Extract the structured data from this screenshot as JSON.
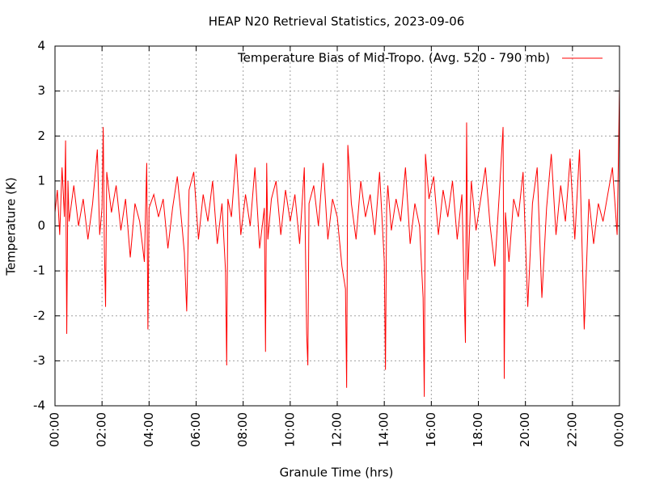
{
  "chart_data": {
    "type": "line",
    "title": "HEAP N20 Retrieval Statistics, 2023-09-06",
    "x_label": "Granule Time (hrs)",
    "y_label": "Temperature (K)",
    "grid": true,
    "legend": "top-right",
    "xlim": [
      0,
      24
    ],
    "ylim": [
      -4,
      4
    ],
    "yticks": [
      -4,
      -3,
      -2,
      -1,
      0,
      1,
      2,
      3,
      4
    ],
    "xticks": [
      {
        "value": 0,
        "label": "00:00"
      },
      {
        "value": 2,
        "label": "02:00"
      },
      {
        "value": 4,
        "label": "04:00"
      },
      {
        "value": 6,
        "label": "06:00"
      },
      {
        "value": 8,
        "label": "08:00"
      },
      {
        "value": 10,
        "label": "10:00"
      },
      {
        "value": 12,
        "label": "12:00"
      },
      {
        "value": 14,
        "label": "14:00"
      },
      {
        "value": 16,
        "label": "16:00"
      },
      {
        "value": 18,
        "label": "18:00"
      },
      {
        "value": 20,
        "label": "20:00"
      },
      {
        "value": 22,
        "label": "22:00"
      },
      {
        "value": 24,
        "label": "00:00"
      }
    ],
    "x": [
      0,
      0.1,
      0.2,
      0.3,
      0.4,
      0.45,
      0.5,
      0.55,
      0.6,
      0.8,
      1.0,
      1.2,
      1.4,
      1.6,
      1.8,
      1.9,
      2.0,
      2.05,
      2.1,
      2.15,
      2.2,
      2.4,
      2.6,
      2.8,
      3.0,
      3.2,
      3.4,
      3.6,
      3.8,
      3.9,
      3.95,
      4.0,
      4.2,
      4.4,
      4.6,
      4.8,
      5.0,
      5.2,
      5.4,
      5.5,
      5.6,
      5.7,
      5.9,
      6.1,
      6.3,
      6.5,
      6.7,
      6.9,
      7.1,
      7.25,
      7.3,
      7.35,
      7.5,
      7.7,
      7.9,
      8.1,
      8.3,
      8.5,
      8.7,
      8.9,
      8.95,
      9.0,
      9.05,
      9.2,
      9.4,
      9.6,
      9.8,
      10.0,
      10.2,
      10.4,
      10.6,
      10.7,
      10.75,
      10.8,
      11.0,
      11.2,
      11.4,
      11.6,
      11.8,
      12.0,
      12.2,
      12.35,
      12.4,
      12.45,
      12.6,
      12.8,
      13.0,
      13.2,
      13.4,
      13.6,
      13.8,
      14.0,
      14.05,
      14.1,
      14.15,
      14.3,
      14.5,
      14.7,
      14.9,
      15.1,
      15.3,
      15.5,
      15.65,
      15.7,
      15.75,
      15.9,
      16.1,
      16.3,
      16.5,
      16.7,
      16.9,
      17.1,
      17.3,
      17.45,
      17.5,
      17.55,
      17.7,
      17.9,
      18.1,
      18.3,
      18.5,
      18.7,
      18.9,
      19.05,
      19.1,
      19.15,
      19.3,
      19.5,
      19.7,
      19.9,
      20.1,
      20.3,
      20.5,
      20.7,
      20.9,
      21.1,
      21.3,
      21.5,
      21.7,
      21.9,
      22.1,
      22.3,
      22.5,
      22.7,
      22.9,
      23.1,
      23.3,
      23.5,
      23.7,
      23.9,
      23.95,
      24.0
    ],
    "series": [
      {
        "name": "Temperature Bias of Mid-Tropo. (Avg. 520 - 790 mb)",
        "color": "#ff0000",
        "values": [
          0.3,
          0.8,
          -0.2,
          1.3,
          0.2,
          1.9,
          -2.4,
          1.0,
          0.1,
          0.9,
          0.0,
          0.6,
          -0.3,
          0.5,
          1.7,
          -0.2,
          0.4,
          2.2,
          -0.5,
          -1.8,
          1.2,
          0.3,
          0.9,
          -0.1,
          0.6,
          -0.7,
          0.5,
          0.1,
          -0.8,
          1.4,
          -2.3,
          0.4,
          0.7,
          0.2,
          0.6,
          -0.5,
          0.4,
          1.1,
          0.0,
          -0.6,
          -1.9,
          0.8,
          1.2,
          -0.3,
          0.7,
          0.1,
          1.0,
          -0.4,
          0.5,
          -1.0,
          -3.1,
          0.6,
          0.2,
          1.6,
          -0.2,
          0.7,
          0.0,
          1.3,
          -0.5,
          0.4,
          -2.8,
          1.4,
          -0.3,
          0.6,
          1.0,
          -0.2,
          0.8,
          0.1,
          0.7,
          -0.4,
          1.3,
          -2.4,
          -3.1,
          0.5,
          0.9,
          0.0,
          1.4,
          -0.3,
          0.6,
          0.2,
          -0.9,
          -1.4,
          -3.6,
          1.8,
          0.5,
          -0.3,
          1.0,
          0.2,
          0.7,
          -0.2,
          1.2,
          -0.8,
          -3.2,
          0.4,
          0.9,
          -0.1,
          0.6,
          0.1,
          1.3,
          -0.4,
          0.5,
          0.0,
          -1.6,
          -3.8,
          1.6,
          0.6,
          1.1,
          -0.2,
          0.8,
          0.2,
          1.0,
          -0.3,
          0.7,
          -2.6,
          2.3,
          -1.2,
          1.0,
          -0.1,
          0.6,
          1.3,
          0.0,
          -0.9,
          0.8,
          2.2,
          -3.4,
          0.3,
          -0.8,
          0.6,
          0.2,
          1.2,
          -1.8,
          0.5,
          1.3,
          -1.6,
          0.4,
          1.6,
          -0.2,
          0.9,
          0.1,
          1.5,
          -0.3,
          1.7,
          -2.3,
          0.6,
          -0.4,
          0.5,
          0.1,
          0.7,
          1.3,
          -0.2,
          1.4,
          3.1
        ]
      }
    ]
  }
}
